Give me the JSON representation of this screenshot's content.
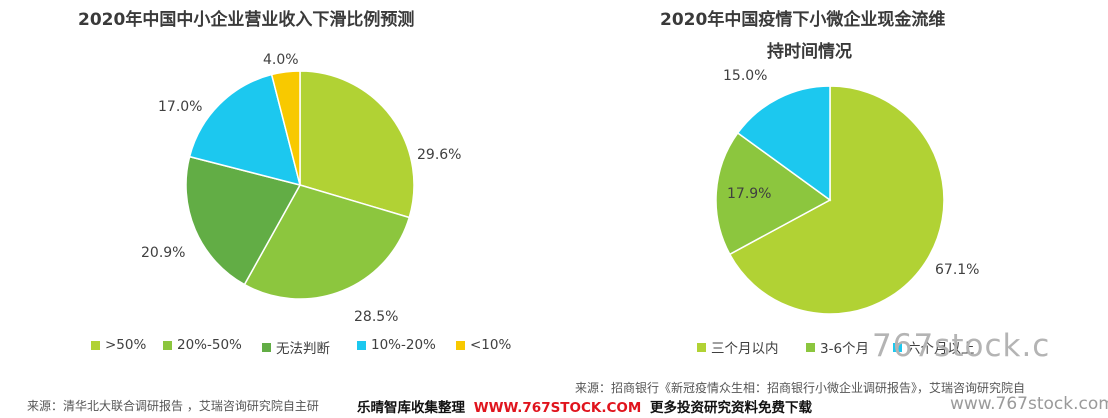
{
  "chart_data": [
    {
      "type": "pie",
      "title": "2020年中国中小企业营业收入下滑比例预测",
      "slices": [
        {
          "label": ">50%",
          "value": 29.6,
          "value_label": "29.6%",
          "color": "#b1d234"
        },
        {
          "label": "20%-50%",
          "value": 28.5,
          "value_label": "28.5%",
          "color": "#8cc63e"
        },
        {
          "label": "无法判断",
          "value": 20.9,
          "value_label": "20.9%",
          "color": "#62ad45"
        },
        {
          "label": "10%-20%",
          "value": 17.0,
          "value_label": "17.0%",
          "color": "#1cc8ef"
        },
        {
          "label": "<10%",
          "value": 4.0,
          "value_label": "4.0%",
          "color": "#f8c900"
        }
      ],
      "legend_position": "bottom"
    },
    {
      "type": "pie",
      "title": "2020年中国疫情下小微企业现金流维持时间情况",
      "title_lines": [
        "2020年中国疫情下小微企业现金流维",
        "持时间情况"
      ],
      "slices": [
        {
          "label": "三个月以内",
          "value": 67.1,
          "value_label": "67.1%",
          "color": "#b1d234"
        },
        {
          "label": "3-6个月",
          "value": 17.9,
          "value_label": "17.9%",
          "color": "#8cc63e"
        },
        {
          "label": "六个月以上",
          "value": 15.0,
          "value_label": "15.0%",
          "color": "#1cc8ef"
        }
      ],
      "legend_position": "bottom"
    }
  ],
  "sources": {
    "left": "来源：清华北大联合调研报告 ，艾瑞咨询研究院自主研",
    "right": "来源：招商银行《新冠疫情众生相：招商银行小微企业调研报告》，艾瑞咨询研究院自"
  },
  "banner": {
    "prefix": "乐晴智库收集整理",
    "url": "WWW.767STOCK.COM",
    "suffix": "更多投资研究资料免费下载"
  },
  "watermarks": {
    "large": "767stock.c",
    "small": "www.767stock.com"
  }
}
